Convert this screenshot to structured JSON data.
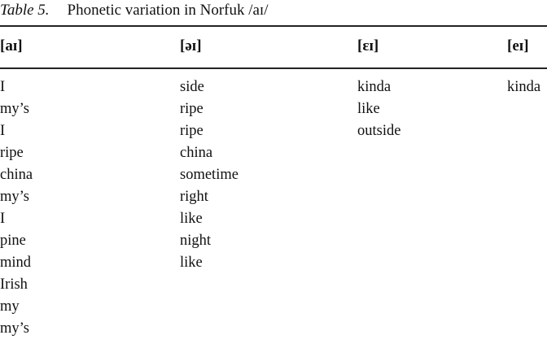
{
  "caption": {
    "label": "Table 5.",
    "title": "Phonetic variation in Norfuk /aɪ/"
  },
  "table": {
    "columns": [
      {
        "header": "[aɪ]",
        "items": [
          "I",
          "my’s",
          "I",
          "ripe",
          "china",
          "my’s",
          "I",
          "pine",
          "mind",
          "Irish",
          "my",
          "my’s"
        ]
      },
      {
        "header": "[əɪ]",
        "items": [
          "side",
          "ripe",
          "ripe",
          "china",
          "sometime",
          "right",
          "like",
          "night",
          "like"
        ]
      },
      {
        "header": "[ɛɪ]",
        "items": [
          "kinda",
          "like",
          "outside"
        ]
      },
      {
        "header": "[eɪ]",
        "items": [
          "kinda"
        ]
      }
    ]
  }
}
